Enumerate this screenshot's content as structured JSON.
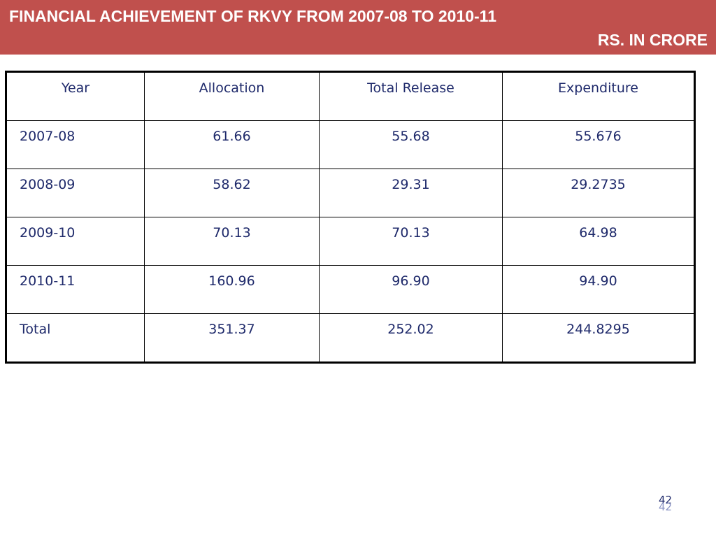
{
  "header": {
    "title": "FINANCIAL ACHIEVEMENT OF RKVY FROM 2007-08 TO 2010-11",
    "subtitle": "RS. IN CRORE",
    "background_color": "#c0504d",
    "text_color": "#ffffff"
  },
  "table": {
    "text_color": "#1f2a6b",
    "columns": [
      "Year",
      "Allocation",
      "Total Release",
      "Expenditure"
    ],
    "rows": [
      [
        "2007-08",
        "61.66",
        "55.68",
        "55.676"
      ],
      [
        "2008-09",
        "58.62",
        "29.31",
        "29.2735"
      ],
      [
        "2009-10",
        "70.13",
        "70.13",
        "64.98"
      ],
      [
        "2010-11",
        "160.96",
        "96.90",
        "94.90"
      ],
      [
        "Total",
        "351.37",
        "252.02",
        "244.8295"
      ]
    ]
  },
  "footer": {
    "page_number": "42"
  }
}
